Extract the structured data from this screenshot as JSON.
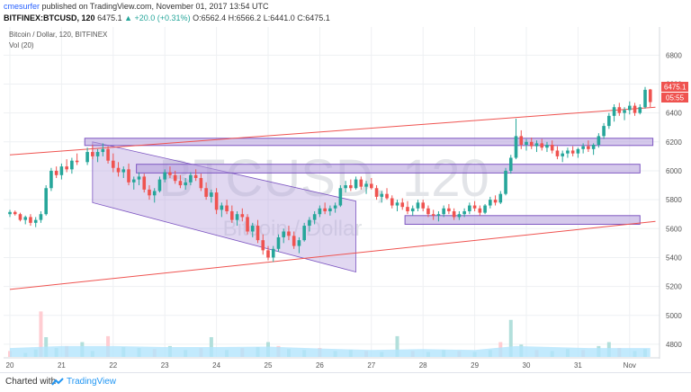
{
  "header": {
    "author": "cmesurfer",
    "published_text": "published on TradingView.com, November 01, 2017 13:54 UTC",
    "symbol": "BITFINEX:BTCUSD",
    "interval": "120",
    "last_price": "6475.1",
    "change": "▲ +20.0 (+0.31%)",
    "o_label": "O:",
    "o_value": "6562.4",
    "h_label": "H:",
    "h_value": "6566.2",
    "l_label": "L:",
    "l_value": "6441.0",
    "c_label": "C:",
    "c_value": "6475.1"
  },
  "legend": {
    "title": "Bitcoin / Dollar, 120, BITFINEX",
    "vol": "Vol (20)"
  },
  "watermark": {
    "symbol": "BTCUSD, 120",
    "name": "Bitcoin / Dollar"
  },
  "price_labels": {
    "last": "6475.1",
    "countdown": "05:55"
  },
  "footer": {
    "charted_with": "Charted with",
    "brand": "TradingView"
  },
  "colors": {
    "up": "#26a69a",
    "down": "#ef5350",
    "trendline": "#ef5350",
    "zone_fill": "#b39ddb",
    "zone_stroke": "#7e57c2",
    "volume_up": "#b2dfdb",
    "volume_down": "#ffcdd2",
    "volume_ma": "#b3e5fc",
    "last_price_label": "#ef5350"
  },
  "chart_data": {
    "type": "candlestick",
    "x_tick_labels": [
      "20",
      "21",
      "22",
      "23",
      "24",
      "25",
      "26",
      "27",
      "28",
      "29",
      "30",
      "31",
      "Nov"
    ],
    "y_tick_labels": [
      4800,
      5000,
      5200,
      5400,
      5600,
      5800,
      6000,
      6200,
      6400,
      6600,
      6800
    ],
    "ylim": [
      4680,
      6880
    ],
    "grid": true,
    "candles": [
      [
        20.0,
        5700,
        5730,
        5680,
        5715
      ],
      [
        20.1,
        5715,
        5725,
        5690,
        5700
      ],
      [
        20.2,
        5700,
        5710,
        5650,
        5660
      ],
      [
        20.3,
        5660,
        5690,
        5630,
        5680
      ],
      [
        20.4,
        5680,
        5700,
        5620,
        5640
      ],
      [
        20.5,
        5640,
        5680,
        5610,
        5660
      ],
      [
        20.6,
        5660,
        5720,
        5640,
        5700
      ],
      [
        20.7,
        5700,
        5900,
        5690,
        5880
      ],
      [
        20.8,
        5880,
        6020,
        5860,
        6000
      ],
      [
        20.9,
        6000,
        6030,
        5950,
        5970
      ],
      [
        21.0,
        5970,
        6050,
        5940,
        6030
      ],
      [
        21.1,
        6030,
        6080,
        5990,
        6010
      ],
      [
        21.2,
        6010,
        6090,
        5980,
        6070
      ],
      [
        21.3,
        6070,
        6120,
        6040,
        6060
      ],
      [
        21.5,
        6060,
        6160,
        6040,
        6130
      ],
      [
        21.6,
        6130,
        6180,
        6080,
        6100
      ],
      [
        21.7,
        6100,
        6150,
        6060,
        6130
      ],
      [
        21.8,
        6130,
        6190,
        6100,
        6150
      ],
      [
        21.9,
        6150,
        6170,
        6050,
        6070
      ],
      [
        22.0,
        6070,
        6120,
        5990,
        6020
      ],
      [
        22.1,
        6020,
        6060,
        5960,
        5990
      ],
      [
        22.2,
        5990,
        6030,
        5950,
        6010
      ],
      [
        22.3,
        6010,
        6050,
        5900,
        5920
      ],
      [
        22.4,
        5920,
        5960,
        5870,
        5940
      ],
      [
        22.5,
        5940,
        5990,
        5900,
        5960
      ],
      [
        22.6,
        5960,
        5980,
        5850,
        5870
      ],
      [
        22.7,
        5870,
        5900,
        5800,
        5830
      ],
      [
        22.8,
        5830,
        5880,
        5780,
        5860
      ],
      [
        22.9,
        5860,
        5960,
        5850,
        5940
      ],
      [
        23.0,
        5940,
        6010,
        5920,
        5990
      ],
      [
        23.1,
        5990,
        6030,
        5950,
        5970
      ],
      [
        23.2,
        5970,
        6000,
        5910,
        5930
      ],
      [
        23.3,
        5930,
        5970,
        5880,
        5900
      ],
      [
        23.4,
        5900,
        5950,
        5870,
        5920
      ],
      [
        23.5,
        5920,
        5990,
        5900,
        5970
      ],
      [
        23.6,
        5970,
        6010,
        5930,
        5950
      ],
      [
        23.7,
        5950,
        5980,
        5860,
        5880
      ],
      [
        23.8,
        5880,
        5920,
        5800,
        5820
      ],
      [
        23.9,
        5820,
        5870,
        5780,
        5850
      ],
      [
        24.0,
        5850,
        5880,
        5700,
        5730
      ],
      [
        24.1,
        5730,
        5780,
        5680,
        5760
      ],
      [
        24.2,
        5760,
        5800,
        5700,
        5720
      ],
      [
        24.3,
        5720,
        5760,
        5640,
        5660
      ],
      [
        24.4,
        5660,
        5720,
        5620,
        5700
      ],
      [
        24.5,
        5700,
        5740,
        5650,
        5680
      ],
      [
        24.6,
        5680,
        5700,
        5560,
        5580
      ],
      [
        24.7,
        5580,
        5640,
        5540,
        5620
      ],
      [
        24.8,
        5620,
        5660,
        5500,
        5520
      ],
      [
        24.9,
        5520,
        5560,
        5420,
        5450
      ],
      [
        25.0,
        5450,
        5480,
        5380,
        5400
      ],
      [
        25.1,
        5400,
        5480,
        5370,
        5460
      ],
      [
        25.2,
        5460,
        5560,
        5440,
        5540
      ],
      [
        25.3,
        5540,
        5600,
        5500,
        5580
      ],
      [
        25.4,
        5580,
        5620,
        5520,
        5550
      ],
      [
        25.5,
        5550,
        5580,
        5460,
        5480
      ],
      [
        25.6,
        5480,
        5540,
        5430,
        5520
      ],
      [
        25.7,
        5520,
        5640,
        5510,
        5620
      ],
      [
        25.8,
        5620,
        5680,
        5580,
        5660
      ],
      [
        25.9,
        5660,
        5720,
        5630,
        5700
      ],
      [
        26.0,
        5700,
        5760,
        5680,
        5740
      ],
      [
        26.1,
        5740,
        5780,
        5700,
        5720
      ],
      [
        26.2,
        5720,
        5760,
        5690,
        5740
      ],
      [
        26.3,
        5740,
        5780,
        5710,
        5760
      ],
      [
        26.4,
        5760,
        5900,
        5750,
        5880
      ],
      [
        26.5,
        5880,
        5930,
        5850,
        5900
      ],
      [
        26.6,
        5900,
        5940,
        5860,
        5880
      ],
      [
        26.7,
        5880,
        5960,
        5870,
        5940
      ],
      [
        26.8,
        5940,
        5960,
        5870,
        5890
      ],
      [
        26.9,
        5890,
        5930,
        5840,
        5910
      ],
      [
        27.0,
        5910,
        5950,
        5870,
        5880
      ],
      [
        27.1,
        5880,
        5900,
        5800,
        5820
      ],
      [
        27.2,
        5820,
        5860,
        5780,
        5840
      ],
      [
        27.3,
        5840,
        5880,
        5800,
        5810
      ],
      [
        27.4,
        5810,
        5830,
        5740,
        5760
      ],
      [
        27.5,
        5760,
        5800,
        5720,
        5780
      ],
      [
        27.6,
        5780,
        5810,
        5730,
        5750
      ],
      [
        27.7,
        5750,
        5790,
        5700,
        5720
      ],
      [
        27.8,
        5720,
        5760,
        5690,
        5740
      ],
      [
        27.9,
        5740,
        5800,
        5720,
        5780
      ],
      [
        28.0,
        5780,
        5800,
        5720,
        5740
      ],
      [
        28.1,
        5740,
        5760,
        5680,
        5700
      ],
      [
        28.2,
        5700,
        5730,
        5660,
        5690
      ],
      [
        28.3,
        5690,
        5720,
        5650,
        5700
      ],
      [
        28.4,
        5700,
        5760,
        5680,
        5740
      ],
      [
        28.5,
        5740,
        5770,
        5700,
        5720
      ],
      [
        28.6,
        5720,
        5740,
        5660,
        5680
      ],
      [
        28.7,
        5680,
        5720,
        5660,
        5700
      ],
      [
        28.8,
        5700,
        5740,
        5680,
        5720
      ],
      [
        28.9,
        5720,
        5780,
        5700,
        5760
      ],
      [
        29.0,
        5760,
        5790,
        5720,
        5740
      ],
      [
        29.1,
        5740,
        5760,
        5690,
        5710
      ],
      [
        29.2,
        5710,
        5770,
        5700,
        5760
      ],
      [
        29.3,
        5760,
        5820,
        5740,
        5800
      ],
      [
        29.4,
        5800,
        5830,
        5760,
        5780
      ],
      [
        29.5,
        5780,
        5860,
        5770,
        5840
      ],
      [
        29.6,
        5840,
        6020,
        5830,
        6000
      ],
      [
        29.7,
        6000,
        6110,
        5980,
        6090
      ],
      [
        29.8,
        6090,
        6360,
        6080,
        6240
      ],
      [
        29.9,
        6240,
        6280,
        6150,
        6180
      ],
      [
        30.0,
        6180,
        6220,
        6140,
        6200
      ],
      [
        30.1,
        6200,
        6230,
        6150,
        6170
      ],
      [
        30.2,
        6170,
        6210,
        6130,
        6190
      ],
      [
        30.3,
        6190,
        6220,
        6140,
        6160
      ],
      [
        30.4,
        6160,
        6200,
        6130,
        6180
      ],
      [
        30.5,
        6180,
        6210,
        6120,
        6140
      ],
      [
        30.6,
        6140,
        6170,
        6080,
        6100
      ],
      [
        30.7,
        6100,
        6140,
        6060,
        6120
      ],
      [
        30.8,
        6120,
        6160,
        6090,
        6140
      ],
      [
        30.9,
        6140,
        6170,
        6100,
        6120
      ],
      [
        31.0,
        6120,
        6160,
        6090,
        6150
      ],
      [
        31.1,
        6150,
        6190,
        6120,
        6170
      ],
      [
        31.2,
        6170,
        6210,
        6130,
        6150
      ],
      [
        31.3,
        6150,
        6190,
        6110,
        6180
      ],
      [
        31.4,
        6180,
        6260,
        6160,
        6240
      ],
      [
        31.5,
        6240,
        6330,
        6220,
        6310
      ],
      [
        31.6,
        6310,
        6400,
        6290,
        6380
      ],
      [
        31.7,
        6380,
        6460,
        6340,
        6440
      ],
      [
        31.8,
        6440,
        6470,
        6380,
        6400
      ],
      [
        31.9,
        6400,
        6440,
        6350,
        6420
      ],
      [
        32.0,
        6420,
        6480,
        6390,
        6450
      ],
      [
        32.1,
        6450,
        6470,
        6380,
        6400
      ],
      [
        32.2,
        6400,
        6460,
        6390,
        6440
      ],
      [
        32.3,
        6440,
        6580,
        6430,
        6560
      ],
      [
        32.4,
        6562.4,
        6566.2,
        6441.0,
        6475.1
      ]
    ],
    "volume": [
      [
        20.0,
        12
      ],
      [
        20.3,
        8
      ],
      [
        20.5,
        15
      ],
      [
        20.6,
        92
      ],
      [
        20.7,
        40
      ],
      [
        20.9,
        18
      ],
      [
        21.1,
        22
      ],
      [
        21.4,
        30
      ],
      [
        21.6,
        12
      ],
      [
        21.9,
        42
      ],
      [
        22.2,
        20
      ],
      [
        22.5,
        18
      ],
      [
        22.8,
        16
      ],
      [
        23.1,
        22
      ],
      [
        23.4,
        14
      ],
      [
        23.7,
        18
      ],
      [
        23.9,
        40
      ],
      [
        24.2,
        14
      ],
      [
        24.5,
        18
      ],
      [
        24.8,
        20
      ],
      [
        25.0,
        30
      ],
      [
        25.2,
        22
      ],
      [
        25.4,
        16
      ],
      [
        25.7,
        14
      ],
      [
        26.0,
        18
      ],
      [
        26.3,
        12
      ],
      [
        26.6,
        14
      ],
      [
        26.9,
        12
      ],
      [
        27.2,
        10
      ],
      [
        27.5,
        42
      ],
      [
        27.8,
        12
      ],
      [
        28.1,
        10
      ],
      [
        28.4,
        14
      ],
      [
        28.7,
        12
      ],
      [
        29.0,
        10
      ],
      [
        29.3,
        14
      ],
      [
        29.5,
        30
      ],
      [
        29.7,
        75
      ],
      [
        29.9,
        25
      ],
      [
        30.2,
        14
      ],
      [
        30.5,
        12
      ],
      [
        30.8,
        16
      ],
      [
        31.1,
        14
      ],
      [
        31.4,
        22
      ],
      [
        31.6,
        30
      ],
      [
        31.8,
        18
      ],
      [
        32.1,
        12
      ],
      [
        32.3,
        16
      ]
    ],
    "volume_ma": [
      [
        20.0,
        18
      ],
      [
        21.0,
        22
      ],
      [
        22.0,
        22
      ],
      [
        23.0,
        20
      ],
      [
        24.0,
        20
      ],
      [
        25.0,
        21
      ],
      [
        26.0,
        17
      ],
      [
        27.0,
        14
      ],
      [
        28.0,
        16
      ],
      [
        29.0,
        14
      ],
      [
        29.8,
        22
      ],
      [
        30.5,
        20
      ],
      [
        31.2,
        18
      ],
      [
        32.4,
        18
      ]
    ],
    "trendlines": [
      {
        "x1": 20.0,
        "y1": 6110,
        "x2": 32.5,
        "y2": 6440
      },
      {
        "x1": 20.0,
        "y1": 5180,
        "x2": 32.5,
        "y2": 5650
      }
    ],
    "zones": [
      {
        "x1": 21.45,
        "x2": 32.45,
        "y1": 6175,
        "y2": 6225
      },
      {
        "x1": 22.45,
        "x2": 32.2,
        "y1": 5985,
        "y2": 6045
      },
      {
        "x1": 27.65,
        "x2": 32.2,
        "y1": 5630,
        "y2": 5690
      }
    ],
    "channel": {
      "top": [
        [
          21.6,
          6200
        ],
        [
          26.7,
          5790
        ]
      ],
      "bottom": [
        [
          21.6,
          5780
        ],
        [
          26.7,
          5300
        ]
      ]
    }
  }
}
